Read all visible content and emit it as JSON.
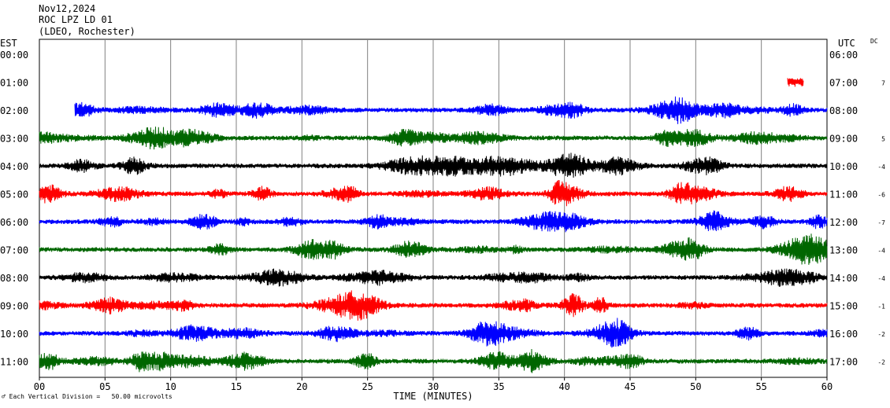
{
  "header": {
    "date": "Nov12,2024",
    "station": "ROC LPZ LD 01",
    "network": "(LDEO, Rochester)"
  },
  "left_tz": "EST",
  "right_tz": "UTC",
  "dc_label": "DC",
  "footer_note": "Each Vertical Division =   50.00 microvolts",
  "colors": {
    "blue": "#0000ff",
    "green": "#006600",
    "black": "#000000",
    "red": "#ff0000",
    "grid": "#808080"
  },
  "chart_data": {
    "type": "line",
    "title": "",
    "xlabel": "TIME (MINUTES)",
    "xlim": [
      0,
      60
    ],
    "x_ticks": [
      "00",
      "05",
      "10",
      "15",
      "20",
      "25",
      "30",
      "35",
      "40",
      "45",
      "50",
      "55",
      "60"
    ],
    "rows": [
      {
        "est": "00:00",
        "utc": "06:00",
        "dc": "",
        "color": "red",
        "start_min": 0,
        "end_min": 0
      },
      {
        "est": "01:00",
        "utc": "07:00",
        "dc": "7",
        "color": "red",
        "start_min": 57.0,
        "end_min": 58.2
      },
      {
        "est": "02:00",
        "utc": "08:00",
        "dc": "",
        "color": "blue",
        "start_min": 2.7,
        "end_min": 60
      },
      {
        "est": "03:00",
        "utc": "09:00",
        "dc": "5",
        "color": "green",
        "start_min": 0,
        "end_min": 60
      },
      {
        "est": "04:00",
        "utc": "10:00",
        "dc": "-4",
        "color": "black",
        "start_min": 0,
        "end_min": 60
      },
      {
        "est": "05:00",
        "utc": "11:00",
        "dc": "-6",
        "color": "red",
        "start_min": 0,
        "end_min": 60
      },
      {
        "est": "06:00",
        "utc": "12:00",
        "dc": "-7",
        "color": "blue",
        "start_min": 0,
        "end_min": 60
      },
      {
        "est": "07:00",
        "utc": "13:00",
        "dc": "-4",
        "color": "green",
        "start_min": 0,
        "end_min": 60
      },
      {
        "est": "08:00",
        "utc": "14:00",
        "dc": "-4",
        "color": "black",
        "start_min": 0,
        "end_min": 60
      },
      {
        "est": "09:00",
        "utc": "15:00",
        "dc": "-1",
        "color": "red",
        "start_min": 0,
        "end_min": 60
      },
      {
        "est": "10:00",
        "utc": "16:00",
        "dc": "-2",
        "color": "blue",
        "start_min": 0,
        "end_min": 60
      },
      {
        "est": "11:00",
        "utc": "17:00",
        "dc": "-2",
        "color": "green",
        "start_min": 0,
        "end_min": 60
      }
    ],
    "grid": true
  }
}
